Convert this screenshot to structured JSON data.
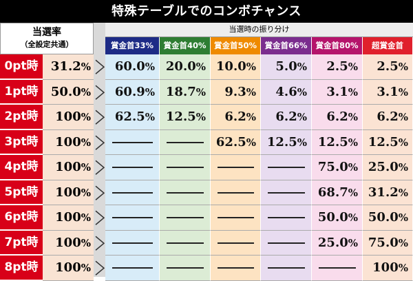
{
  "title": "特殊テーブルでのコンボチャンス",
  "rate_header": {
    "line1": "当選率",
    "line2": "（全設定共通）"
  },
  "dist_header": "当選時の振り分け",
  "categories": [
    {
      "label": "賞金首33%",
      "color": "#1d2b86"
    },
    {
      "label": "賞金首40%",
      "color": "#2e7d32"
    },
    {
      "label": "賞金首50%",
      "color": "#ef8a00"
    },
    {
      "label": "賞金首66%",
      "color": "#7b2d8e"
    },
    {
      "label": "賞金首80%",
      "color": "#b5146b"
    },
    {
      "label": "超賞金首",
      "color": "#e0202c"
    }
  ],
  "column_bg": [
    "#d8ecf8",
    "#dcecd5",
    "#fde3c2",
    "#e8dcf0",
    "#f9dcec",
    "#fbe3d3"
  ],
  "rows": [
    {
      "label": "0pt時",
      "rate": "31.2",
      "cells": [
        "60.0",
        "20.0",
        "10.0",
        "5.0",
        "2.5",
        "2.5"
      ]
    },
    {
      "label": "1pt時",
      "rate": "50.0",
      "cells": [
        "60.9",
        "18.7",
        "9.3",
        "4.6",
        "3.1",
        "3.1"
      ]
    },
    {
      "label": "2pt時",
      "rate": "100",
      "cells": [
        "62.5",
        "12.5",
        "6.2",
        "6.2",
        "6.2",
        "6.2"
      ]
    },
    {
      "label": "3pt時",
      "rate": "100",
      "cells": [
        "—",
        "—",
        "62.5",
        "12.5",
        "12.5",
        "12.5"
      ]
    },
    {
      "label": "4pt時",
      "rate": "100",
      "cells": [
        "—",
        "—",
        "—",
        "—",
        "75.0",
        "25.0"
      ]
    },
    {
      "label": "5pt時",
      "rate": "100",
      "cells": [
        "—",
        "—",
        "—",
        "—",
        "68.7",
        "31.2"
      ]
    },
    {
      "label": "6pt時",
      "rate": "100",
      "cells": [
        "—",
        "—",
        "—",
        "—",
        "50.0",
        "50.0"
      ]
    },
    {
      "label": "7pt時",
      "rate": "100",
      "cells": [
        "—",
        "—",
        "—",
        "—",
        "25.0",
        "75.0"
      ]
    },
    {
      "label": "8pt時",
      "rate": "100",
      "cells": [
        "—",
        "—",
        "—",
        "—",
        "—",
        "100"
      ]
    }
  ],
  "unit": "%"
}
